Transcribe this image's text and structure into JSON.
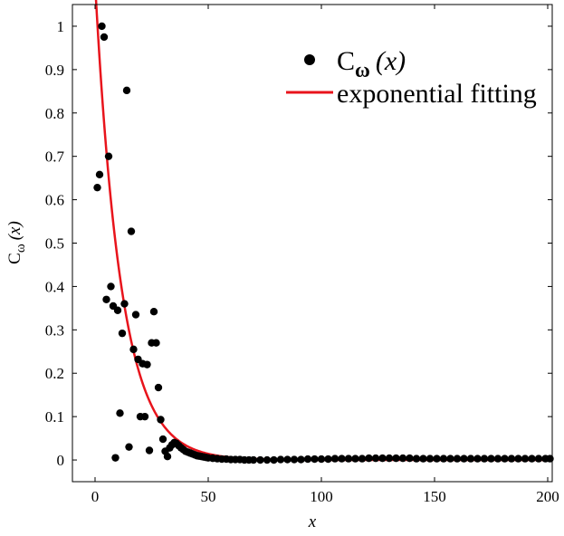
{
  "chart_data": {
    "type": "scatter",
    "title": "",
    "xlabel": "x",
    "ylabel": "C",
    "ylabel_sub": "ω",
    "ylabel_arg": "(x)",
    "xlim": [
      -10,
      202
    ],
    "ylim": [
      -0.05,
      1.05
    ],
    "xticks": [
      0,
      50,
      100,
      150,
      200
    ],
    "yticks": [
      0,
      0.1,
      0.2,
      0.3,
      0.4,
      0.5,
      0.6,
      0.7,
      0.8,
      0.9,
      1
    ],
    "grid": false,
    "legend_position": "top-right",
    "series": [
      {
        "name": "C",
        "legend_sub": "ω",
        "legend_arg": "(x)",
        "kind": "scatter",
        "color": "#000000",
        "x": [
          1,
          2,
          3,
          4,
          5,
          6,
          7,
          8,
          9,
          10,
          11,
          12,
          13,
          14,
          15,
          16,
          17,
          18,
          19,
          20,
          21,
          22,
          23,
          24,
          25,
          26,
          27,
          28,
          29,
          30,
          31,
          32,
          33,
          34,
          35,
          36,
          37,
          38,
          39,
          40,
          41,
          42,
          43,
          44,
          45,
          46,
          47,
          48,
          49,
          50,
          52,
          54,
          56,
          58,
          60,
          62,
          64,
          66,
          68,
          70,
          73,
          76,
          79,
          82,
          85,
          88,
          91,
          94,
          97,
          100,
          103,
          106,
          109,
          112,
          115,
          118,
          121,
          124,
          127,
          130,
          133,
          136,
          139,
          142,
          145,
          148,
          151,
          154,
          157,
          160,
          163,
          166,
          169,
          172,
          175,
          178,
          181,
          184,
          187,
          190,
          193,
          196,
          199,
          201
        ],
        "y": [
          0.628,
          0.658,
          1.0,
          0.975,
          0.37,
          0.7,
          0.4,
          0.355,
          0.005,
          0.345,
          0.108,
          0.292,
          0.36,
          0.852,
          0.03,
          0.527,
          0.255,
          0.335,
          0.232,
          0.1,
          0.222,
          0.1,
          0.22,
          0.022,
          0.27,
          0.342,
          0.27,
          0.167,
          0.093,
          0.048,
          0.02,
          0.008,
          0.028,
          0.035,
          0.04,
          0.038,
          0.033,
          0.028,
          0.024,
          0.02,
          0.018,
          0.016,
          0.014,
          0.012,
          0.01,
          0.009,
          0.008,
          0.007,
          0.006,
          0.005,
          0.004,
          0.003,
          0.002,
          0.002,
          0.001,
          0.001,
          0.001,
          0.0,
          0.0,
          0.0,
          0.0,
          0.0,
          0.0,
          0.001,
          0.001,
          0.001,
          0.001,
          0.002,
          0.002,
          0.002,
          0.002,
          0.003,
          0.003,
          0.003,
          0.003,
          0.003,
          0.004,
          0.004,
          0.004,
          0.004,
          0.004,
          0.004,
          0.004,
          0.003,
          0.003,
          0.003,
          0.003,
          0.003,
          0.003,
          0.003,
          0.003,
          0.003,
          0.003,
          0.003,
          0.003,
          0.003,
          0.003,
          0.003,
          0.003,
          0.003,
          0.003,
          0.003,
          0.003,
          0.003
        ]
      },
      {
        "name": "exponential fitting",
        "kind": "line",
        "color": "#e8141c",
        "function": "y = 1.1 * exp(-x / 11.5)",
        "amplitude": 1.1,
        "decay_length": 11.5,
        "x_start": -1.2,
        "x_end": 200
      }
    ]
  }
}
